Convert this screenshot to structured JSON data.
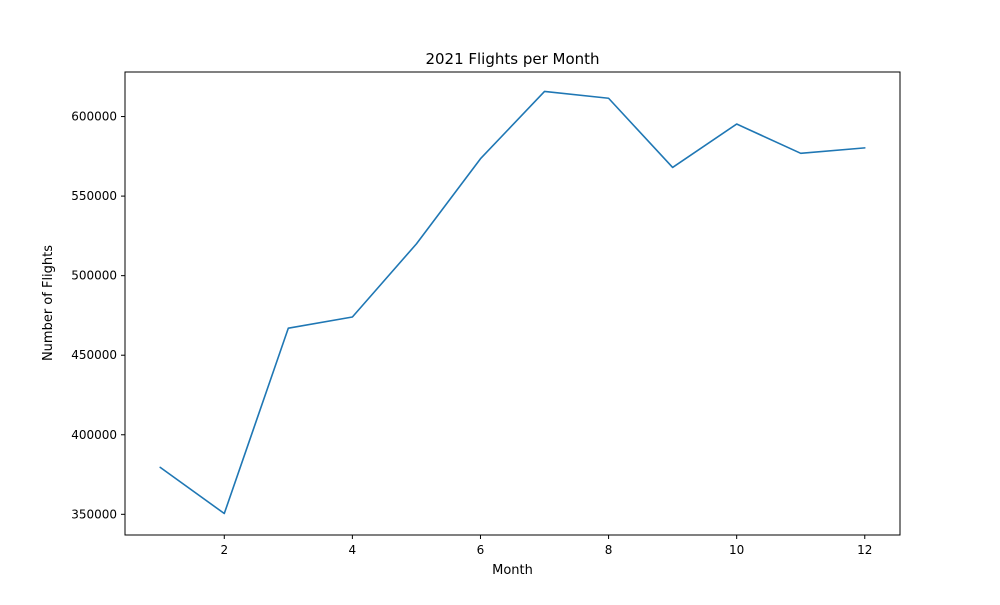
{
  "chart_data": {
    "type": "line",
    "title": "2021 Flights per Month",
    "xlabel": "Month",
    "ylabel": "Number of Flights",
    "x": [
      1,
      2,
      3,
      4,
      5,
      6,
      7,
      8,
      9,
      10,
      11,
      12
    ],
    "series": [
      {
        "values": [
          379500,
          350500,
          467000,
          474000,
          520000,
          573500,
          615800,
          611500,
          568000,
          595300,
          576900,
          580300
        ]
      }
    ],
    "xlim": [
      0.45,
      12.55
    ],
    "ylim": [
      337000,
      628000
    ],
    "xticks": [
      2,
      4,
      6,
      8,
      10,
      12
    ],
    "yticks": [
      350000,
      400000,
      450000,
      500000,
      550000,
      600000
    ],
    "xtick_labels": [
      "2",
      "4",
      "6",
      "8",
      "10",
      "12"
    ],
    "ytick_labels": [
      "350000",
      "400000",
      "450000",
      "500000",
      "550000",
      "600000"
    ],
    "grid": false,
    "colors": {
      "line": "#1f77b4",
      "axes": "#000000"
    }
  }
}
